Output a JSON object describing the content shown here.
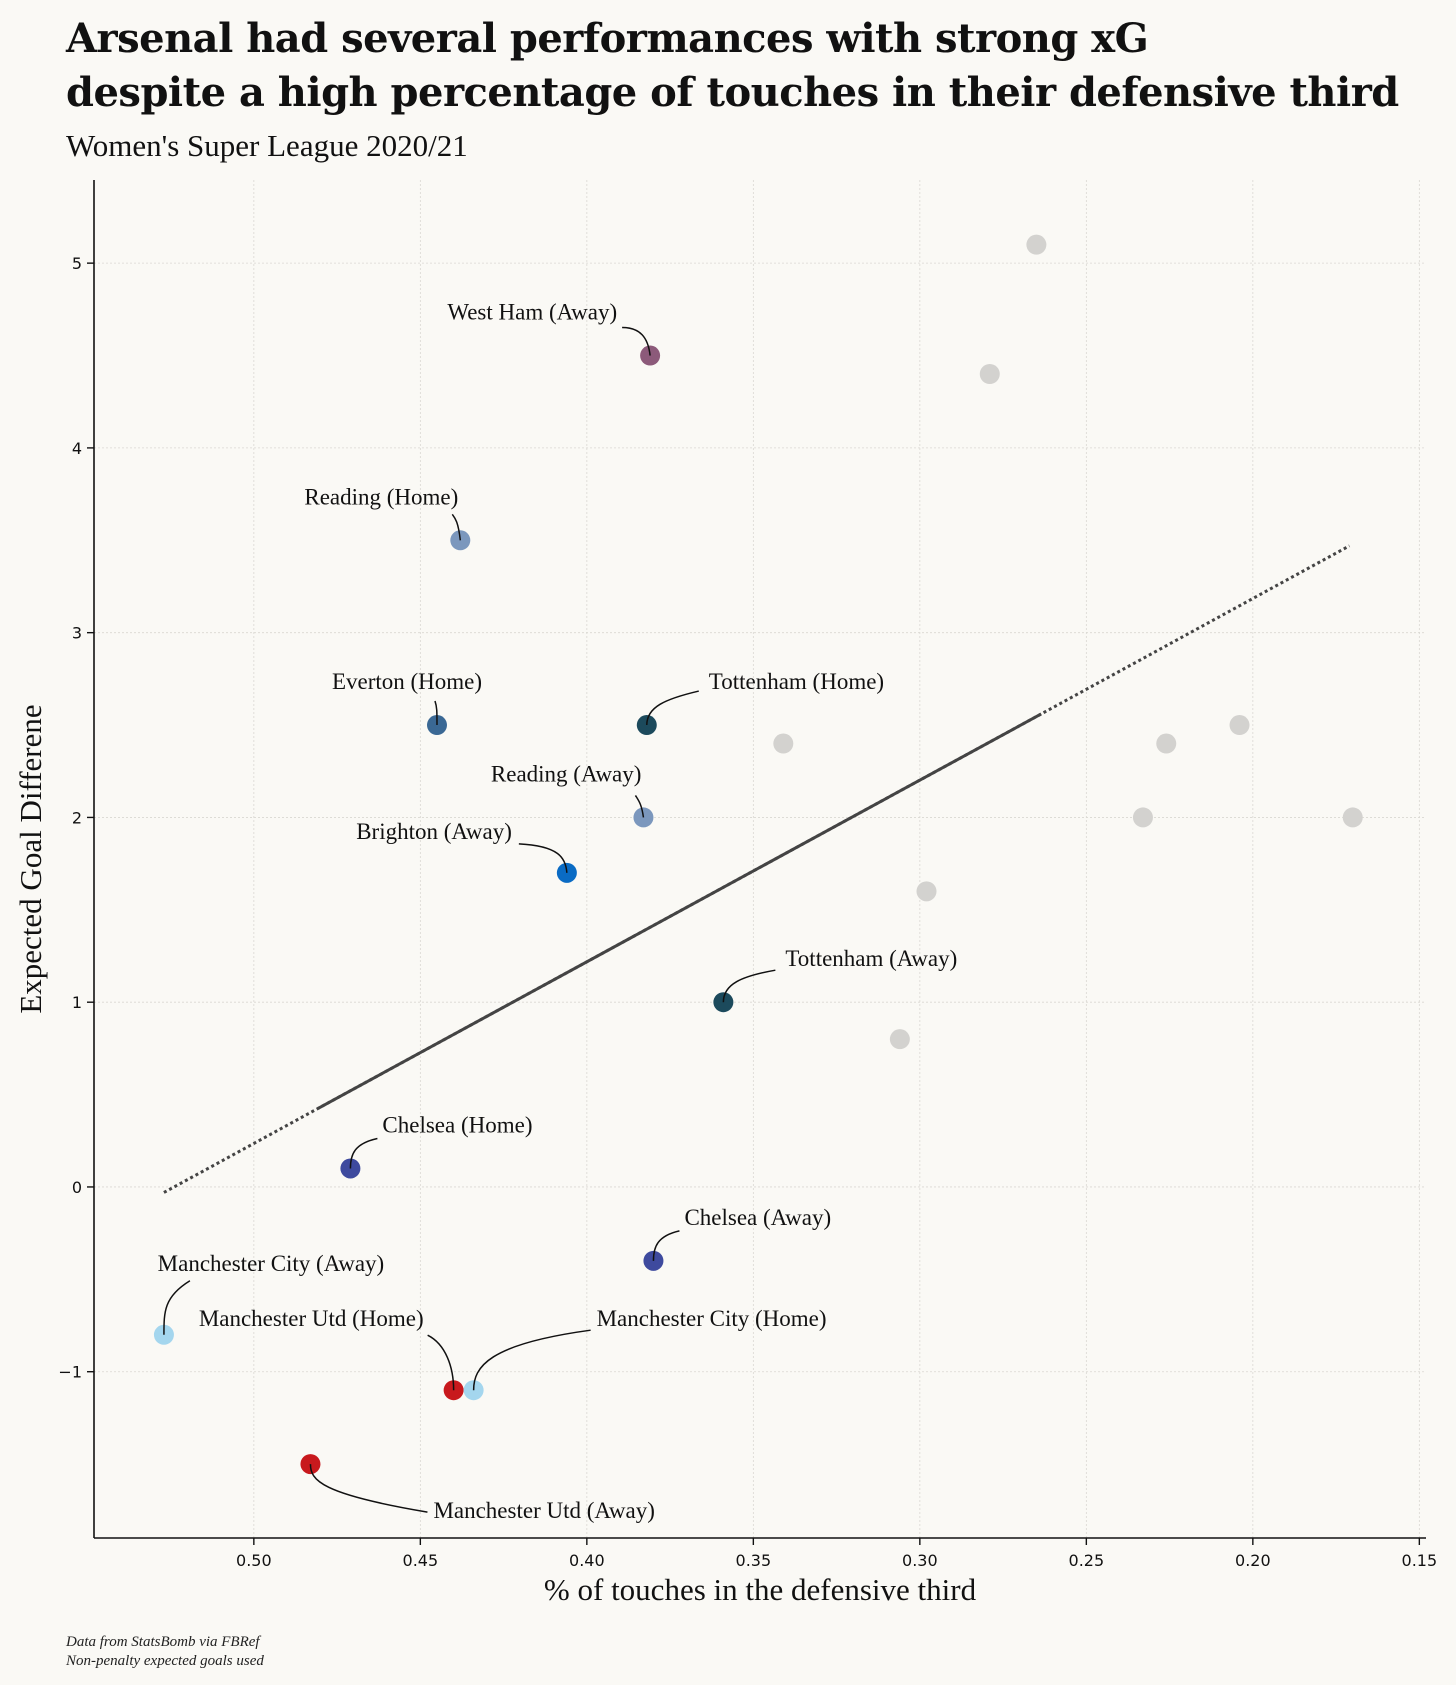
{
  "chart_data": {
    "type": "scatter",
    "title_lines": [
      "Arsenal had several performances with strong xG",
      "despite a high percentage of touches in their defensive third"
    ],
    "subtitle": "Women's Super League 2020/21",
    "xlabel": "% of touches in the defensive third",
    "ylabel": "Expected Goal Differene",
    "x_axis_inverted": true,
    "xlim": [
      0.548,
      0.148
    ],
    "ylim": [
      -1.9,
      5.45
    ],
    "x_ticks": [
      {
        "value": 0.5,
        "label": "0.50"
      },
      {
        "value": 0.45,
        "label": "0.45"
      },
      {
        "value": 0.4,
        "label": "0.40"
      },
      {
        "value": 0.35,
        "label": "0.35"
      },
      {
        "value": 0.3,
        "label": "0.30"
      },
      {
        "value": 0.25,
        "label": "0.25"
      },
      {
        "value": 0.2,
        "label": "0.20"
      },
      {
        "value": 0.15,
        "label": "0.15"
      }
    ],
    "y_ticks": [
      {
        "value": -1,
        "label": "−1"
      },
      {
        "value": 0,
        "label": "0"
      },
      {
        "value": 1,
        "label": "1"
      },
      {
        "value": 2,
        "label": "2"
      },
      {
        "value": 3,
        "label": "3"
      },
      {
        "value": 4,
        "label": "4"
      },
      {
        "value": 5,
        "label": "5"
      }
    ],
    "grid": true,
    "trend_line": {
      "x_start": 0.527,
      "y_start": -0.03,
      "x_end": 0.171,
      "y_end": 3.47
    },
    "labeled_points": [
      {
        "label": "West Ham (Away)",
        "x": 0.381,
        "y": 4.5,
        "color": "#8c5a7a"
      },
      {
        "label": "Reading (Home)",
        "x": 0.438,
        "y": 3.5,
        "color": "#7b97bd"
      },
      {
        "label": "Everton (Home)",
        "x": 0.445,
        "y": 2.5,
        "color": "#3a6894"
      },
      {
        "label": "Tottenham (Home)",
        "x": 0.382,
        "y": 2.5,
        "color": "#1c4a5c"
      },
      {
        "label": "Reading (Away)",
        "x": 0.383,
        "y": 2.0,
        "color": "#7b97bd"
      },
      {
        "label": "Brighton (Away)",
        "x": 0.406,
        "y": 1.7,
        "color": "#0a6bc4"
      },
      {
        "label": "Tottenham (Away)",
        "x": 0.359,
        "y": 1.0,
        "color": "#1c4a5c"
      },
      {
        "label": "Chelsea (Home)",
        "x": 0.471,
        "y": 0.1,
        "color": "#3e4a9e"
      },
      {
        "label": "Chelsea (Away)",
        "x": 0.38,
        "y": -0.4,
        "color": "#3e4a9e"
      },
      {
        "label": "Manchester City (Away)",
        "x": 0.527,
        "y": -0.8,
        "color": "#a4d6ee"
      },
      {
        "label": "Manchester Utd (Home)",
        "x": 0.44,
        "y": -1.1,
        "color": "#c8191d"
      },
      {
        "label": "Manchester City (Home)",
        "x": 0.434,
        "y": -1.1,
        "color": "#a4d6ee"
      },
      {
        "label": "Manchester Utd (Away)",
        "x": 0.483,
        "y": -1.5,
        "color": "#c8191d"
      }
    ],
    "other_points": [
      {
        "x": 0.265,
        "y": 5.1
      },
      {
        "x": 0.279,
        "y": 4.4
      },
      {
        "x": 0.341,
        "y": 2.4
      },
      {
        "x": 0.204,
        "y": 2.5
      },
      {
        "x": 0.226,
        "y": 2.4
      },
      {
        "x": 0.233,
        "y": 2.0
      },
      {
        "x": 0.17,
        "y": 2.0
      },
      {
        "x": 0.298,
        "y": 1.6
      },
      {
        "x": 0.306,
        "y": 0.8
      }
    ],
    "other_points_color": "#d3d2cf"
  },
  "footnote_lines": [
    "Data from StatsBomb via FBRef",
    "Non-penalty expected goals used"
  ]
}
